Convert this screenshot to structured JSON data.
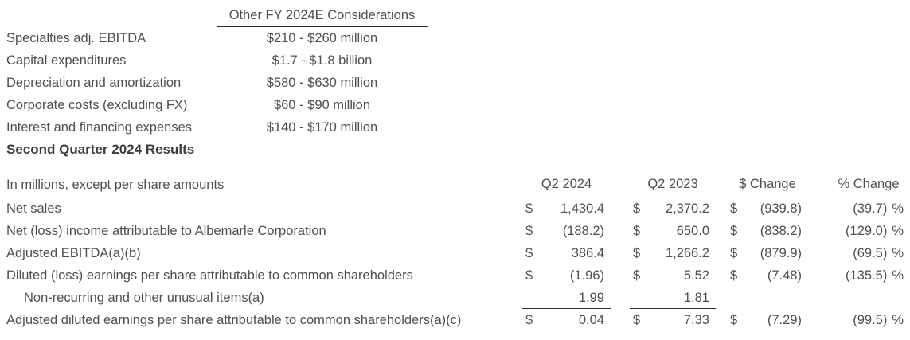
{
  "colors": {
    "text": "#4e4f51",
    "heading": "#3c3d3f",
    "rule": "#2b2b2b",
    "background": "#ffffff"
  },
  "considerations": {
    "header": "Other FY 2024E Considerations",
    "rows": [
      {
        "label": "Specialties adj. EBITDA",
        "value": "$210 - $260 million"
      },
      {
        "label": "Capital expenditures",
        "value": "$1.7 - $1.8 billion"
      },
      {
        "label": "Depreciation and amortization",
        "value": "$580 - $630 million"
      },
      {
        "label": "Corporate costs (excluding FX)",
        "value": "$60 - $90 million"
      },
      {
        "label": "Interest and financing expenses",
        "value": "$140 - $170 million"
      }
    ]
  },
  "results": {
    "heading": "Second Quarter 2024 Results",
    "intro_label": "In millions, except per share amounts",
    "columns": [
      "Q2 2024",
      "Q2 2023",
      "$ Change",
      "% Change"
    ],
    "rows": [
      {
        "label": "Net sales",
        "cells": [
          {
            "prefix": "$",
            "value": "1,430.4"
          },
          {
            "prefix": "$",
            "value": "2,370.2"
          },
          {
            "prefix": "$",
            "value": "(939.8)"
          },
          {
            "value": "(39.7)",
            "suffix": "%"
          }
        ]
      },
      {
        "label": "Net (loss) income attributable to Albemarle Corporation",
        "cells": [
          {
            "prefix": "$",
            "value": "(188.2)"
          },
          {
            "prefix": "$",
            "value": "650.0"
          },
          {
            "prefix": "$",
            "value": "(838.2)"
          },
          {
            "value": "(129.0)",
            "suffix": "%"
          }
        ]
      },
      {
        "label": "Adjusted EBITDA(a)(b)",
        "cells": [
          {
            "prefix": "$",
            "value": "386.4"
          },
          {
            "prefix": "$",
            "value": "1,266.2"
          },
          {
            "prefix": "$",
            "value": "(879.9)"
          },
          {
            "value": "(69.5)",
            "suffix": "%"
          }
        ]
      },
      {
        "label": "Diluted (loss) earnings per share attributable to common shareholders",
        "cells": [
          {
            "prefix": "$",
            "value": "(1.96)"
          },
          {
            "prefix": "$",
            "value": "5.52"
          },
          {
            "prefix": "$",
            "value": "(7.48)"
          },
          {
            "value": "(135.5)",
            "suffix": "%"
          }
        ]
      },
      {
        "label": "Non-recurring and other unusual items(a)",
        "cells": [
          {
            "value": "1.99"
          },
          {
            "value": "1.81"
          },
          {},
          {}
        ]
      },
      {
        "label": "Adjusted diluted earnings per share attributable to common shareholders(a)(c)",
        "cells": [
          {
            "prefix": "$",
            "value": "0.04"
          },
          {
            "prefix": "$",
            "value": "7.33"
          },
          {
            "prefix": "$",
            "value": "(7.29)"
          },
          {
            "value": "(99.5)",
            "suffix": "%"
          }
        ]
      }
    ]
  }
}
